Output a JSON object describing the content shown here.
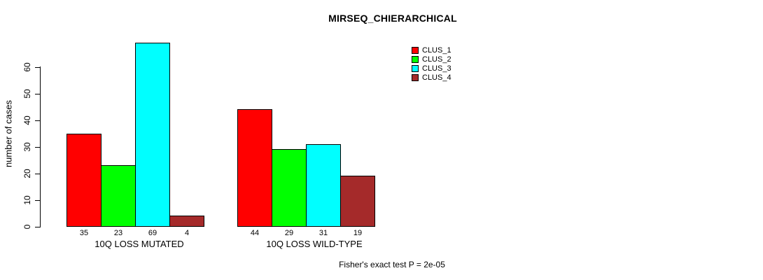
{
  "chart_data": {
    "type": "bar",
    "title": "MIRSEQ_CHIERARCHICAL",
    "ylabel": "number of cases",
    "xlabel": "",
    "categories": [
      "10Q LOSS MUTATED",
      "10Q LOSS WILD-TYPE"
    ],
    "series": [
      {
        "name": "CLUS_1",
        "color": "#FF0000",
        "values": [
          35,
          44
        ]
      },
      {
        "name": "CLUS_2",
        "color": "#00FF00",
        "values": [
          23,
          29
        ]
      },
      {
        "name": "CLUS_3",
        "color": "#00FFFF",
        "values": [
          69,
          31
        ]
      },
      {
        "name": "CLUS_4",
        "color": "#A52A2A",
        "values": [
          4,
          19
        ]
      }
    ],
    "bar_value_labels": [
      [
        "35",
        "23",
        "69",
        "4"
      ],
      [
        "44",
        "29",
        "31",
        "19"
      ]
    ],
    "yticks": [
      "0",
      "10",
      "20",
      "30",
      "40",
      "50",
      "60"
    ],
    "ylim": [
      0,
      60
    ],
    "grid": false,
    "legend": {
      "position": "top-right",
      "entries": [
        "CLUS_1",
        "CLUS_2",
        "CLUS_3",
        "CLUS_4"
      ]
    },
    "annotation": "Fisher's exact test P = 2e-05",
    "colors": {
      "background": "#FFFFFF",
      "axis": "#000000",
      "text": "#000000"
    }
  }
}
